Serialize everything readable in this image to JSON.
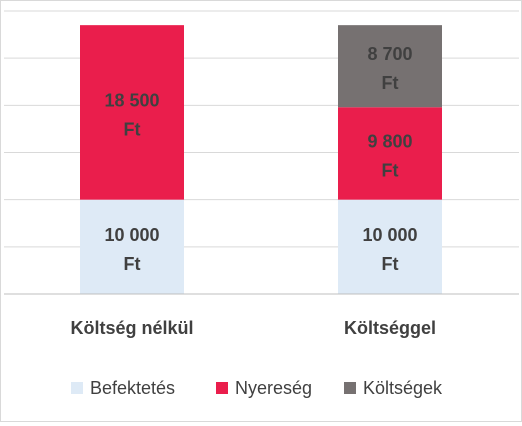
{
  "chart_data": {
    "type": "bar",
    "stacked": true,
    "categories": [
      "Költség nélkül",
      "Költséggel"
    ],
    "series": [
      {
        "name": "Befektetés",
        "color": "#DEEAF6",
        "values": [
          10000,
          10000
        ],
        "labels": [
          "10 000 Ft",
          "10 000 Ft"
        ]
      },
      {
        "name": "Nyereség",
        "color": "#EA1E4C",
        "values": [
          18500,
          9800
        ],
        "labels": [
          "18 500 Ft",
          "9 800 Ft"
        ]
      },
      {
        "name": "Költségek",
        "color": "#767171",
        "values": [
          0,
          8700
        ],
        "labels": [
          "",
          "8 700 Ft"
        ]
      }
    ],
    "ylim": [
      0,
      30000
    ],
    "grid": true,
    "legend_position": "bottom",
    "title": "",
    "xlabel": "",
    "ylabel": ""
  }
}
